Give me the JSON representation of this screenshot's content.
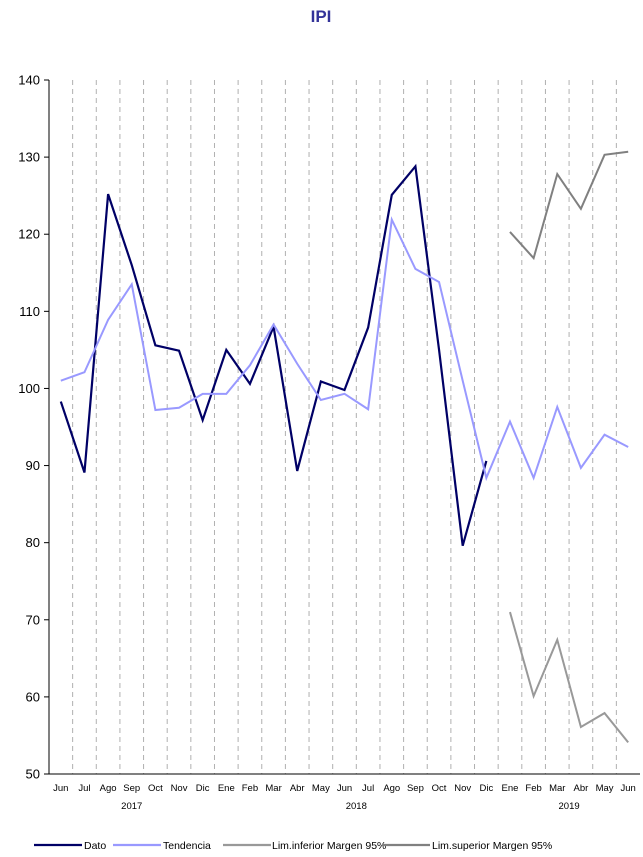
{
  "chart_data": {
    "type": "line",
    "title": "IPI",
    "xlabel": "",
    "ylabel": "",
    "ylim": [
      50,
      140
    ],
    "yticks": [
      50,
      60,
      70,
      80,
      90,
      100,
      110,
      120,
      130,
      140
    ],
    "grid": "vertical dashed",
    "legend_position": "bottom",
    "categories": [
      "Jun",
      "Jul",
      "Ago",
      "Sep",
      "Oct",
      "Nov",
      "Dic",
      "Ene",
      "Feb",
      "Mar",
      "Abr",
      "May",
      "Jun",
      "Jul",
      "Ago",
      "Sep",
      "Oct",
      "Nov",
      "Dic",
      "Ene",
      "Feb",
      "Mar",
      "Abr",
      "May",
      "Jun"
    ],
    "year_labels": [
      {
        "label": "2017",
        "index": 3
      },
      {
        "label": "2018",
        "index": 12.5
      },
      {
        "label": "2019",
        "index": 21.5
      }
    ],
    "series": [
      {
        "name": "Dato",
        "color": "#000066",
        "values": [
          98.3,
          89.1,
          125.2,
          116.0,
          105.6,
          104.9,
          95.9,
          105.0,
          100.6,
          108.0,
          89.3,
          100.9,
          99.8,
          107.9,
          125.1,
          128.8,
          105.0,
          79.6,
          90.6,
          null,
          null,
          null,
          null,
          null,
          null
        ]
      },
      {
        "name": "Tendencia",
        "color": "#9999ff",
        "values": [
          101.0,
          102.1,
          108.9,
          113.5,
          97.2,
          97.5,
          99.3,
          99.3,
          103.0,
          108.3,
          103.2,
          98.5,
          99.3,
          97.3,
          121.9,
          115.5,
          113.8,
          101.0,
          88.4,
          95.7,
          88.4,
          97.6,
          89.7,
          94.0,
          92.4
        ]
      },
      {
        "name": "Lim.inferior Margen 95%",
        "color": "#999999",
        "values": [
          null,
          null,
          null,
          null,
          null,
          null,
          null,
          null,
          null,
          null,
          null,
          null,
          null,
          null,
          null,
          null,
          null,
          null,
          null,
          71.0,
          60.1,
          67.4,
          56.1,
          57.9,
          54.1
        ]
      },
      {
        "name": "Lim.superior Margen 95%",
        "color": "#808080",
        "values": [
          null,
          null,
          null,
          null,
          null,
          null,
          null,
          null,
          null,
          null,
          null,
          null,
          null,
          null,
          null,
          null,
          null,
          null,
          null,
          120.3,
          116.9,
          127.8,
          123.3,
          130.3,
          130.7
        ]
      }
    ]
  }
}
